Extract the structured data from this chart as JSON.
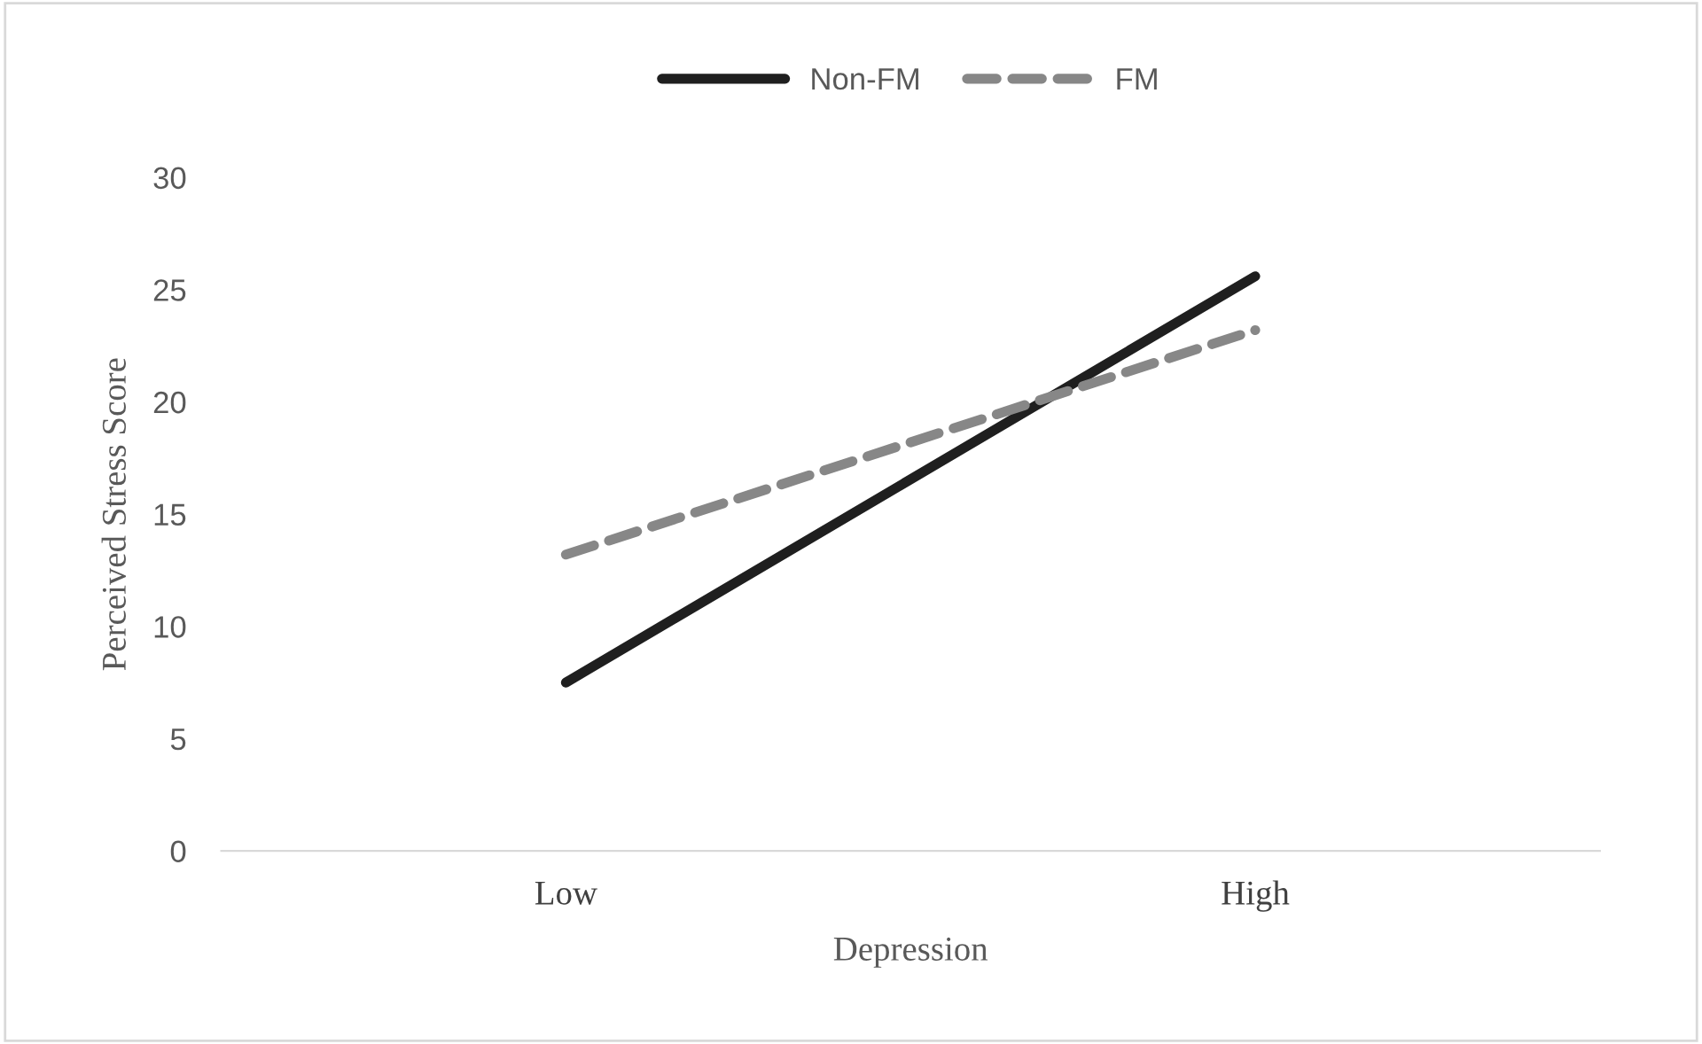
{
  "chart_data": {
    "type": "line",
    "xlabel": "Depression",
    "ylabel": "Perceived Stress Score",
    "categories": [
      "Low",
      "High"
    ],
    "series": [
      {
        "name": "Non-FM",
        "color": "#1f1f1f",
        "values": [
          7.5,
          25.6
        ],
        "line_style": "solid"
      },
      {
        "name": "FM",
        "color": "#878787",
        "values": [
          13.2,
          23.2
        ],
        "line_style": "dashed"
      }
    ],
    "ylim": [
      0,
      30
    ],
    "yticks": [
      0,
      5,
      10,
      15,
      20,
      25,
      30
    ],
    "grid": false,
    "legend": "top",
    "marker": "none"
  }
}
